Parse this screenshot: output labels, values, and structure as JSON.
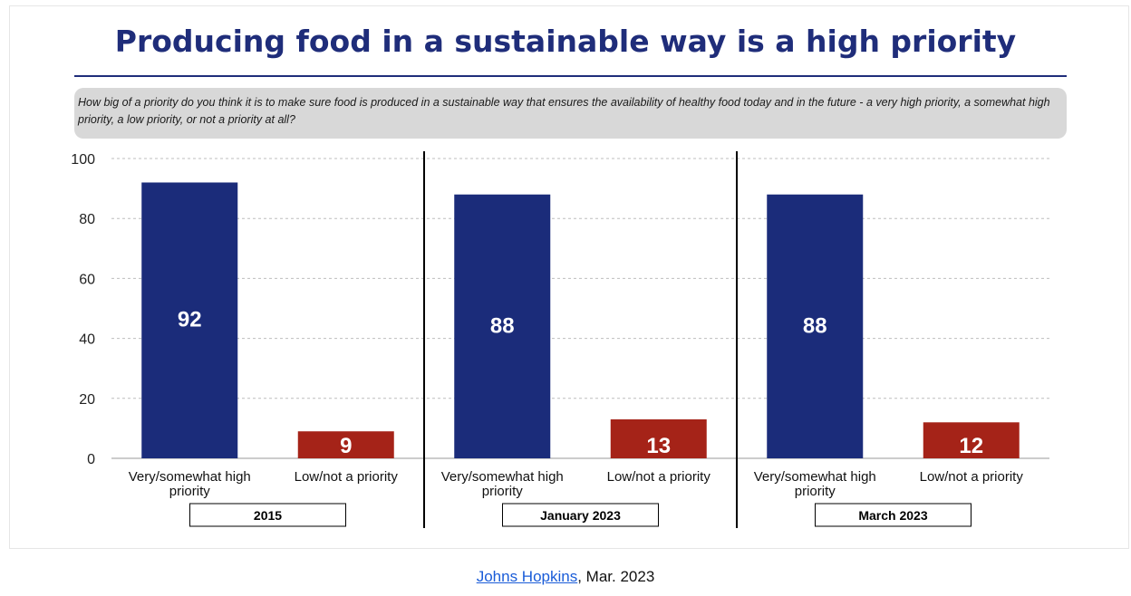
{
  "slide": {
    "title": "Producing food in a sustainable way is a high priority",
    "question": "How big of a priority do you think it is to make sure food is produced in a sustainable way that ensures the availability of healthy food today and in the future - a very high priority, a somewhat high priority, a low priority, or not a priority at all?"
  },
  "footer": {
    "source_link": "Johns Hopkins",
    "date": ", Mar. 2023"
  },
  "colors": {
    "high": "#1b2c7a",
    "low": "#a52318",
    "title": "#1f2d7a"
  },
  "chart_data": {
    "type": "bar",
    "ylim": [
      0,
      100
    ],
    "yticks": [
      0,
      20,
      40,
      60,
      80,
      100
    ],
    "grid": true,
    "groups": [
      {
        "label": "2015",
        "bars": [
          {
            "category": "Very/somewhat high priority",
            "value": 92,
            "color": "#1b2c7a"
          },
          {
            "category": "Low/not a priority",
            "value": 9,
            "color": "#a52318"
          }
        ]
      },
      {
        "label": "January 2023",
        "bars": [
          {
            "category": "Very/somewhat high priority",
            "value": 88,
            "color": "#1b2c7a"
          },
          {
            "category": "Low/not a priority",
            "value": 13,
            "color": "#a52318"
          }
        ]
      },
      {
        "label": "March 2023",
        "bars": [
          {
            "category": "Very/somewhat high priority",
            "value": 88,
            "color": "#1b2c7a"
          },
          {
            "category": "Low/not a priority",
            "value": 12,
            "color": "#a52318"
          }
        ]
      }
    ]
  }
}
